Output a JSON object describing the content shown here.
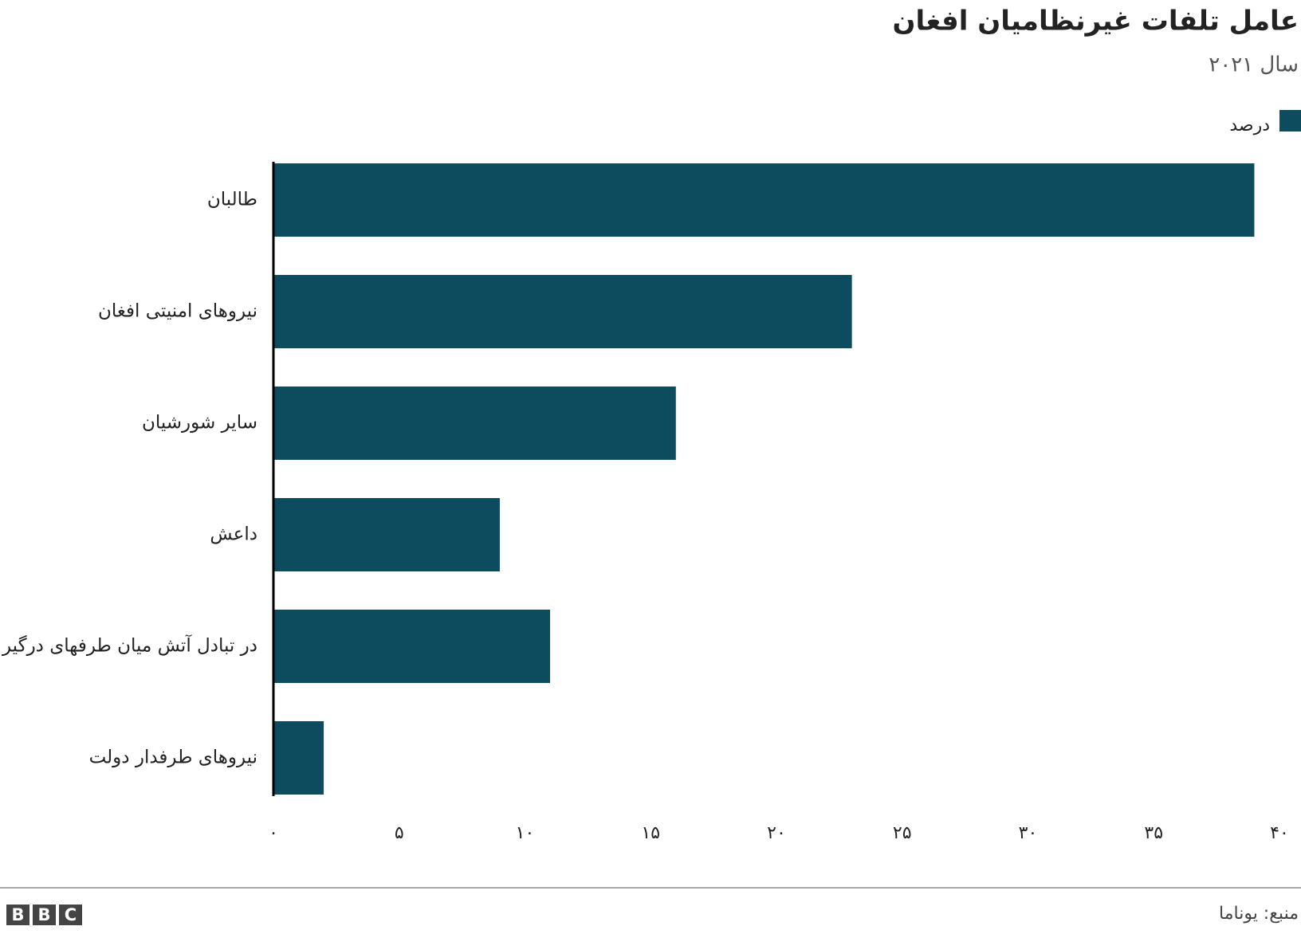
{
  "chart_data": {
    "type": "bar",
    "orientation": "horizontal",
    "title": "عامل تلفات غیرنظامیان افغان",
    "subtitle": "سال ۲۰۲۱",
    "categories": [
      "طالبان",
      "نیروهای امنیتی افغان",
      "سایر شورشیان",
      "داعش",
      "در تبادل آتش میان طرفهای درگیر",
      "نیروهای طرفدار دولت"
    ],
    "series": [
      {
        "name": "درصد",
        "color": "#0d4c5f",
        "values": [
          39,
          23,
          16,
          9,
          11,
          2
        ]
      }
    ],
    "xlim": [
      0,
      40
    ],
    "xticks": [
      {
        "value": 0,
        "label": "۰"
      },
      {
        "value": 5,
        "label": "۵"
      },
      {
        "value": 10,
        "label": "۱۰"
      },
      {
        "value": 15,
        "label": "۱۵"
      },
      {
        "value": 20,
        "label": "۲۰"
      },
      {
        "value": 25,
        "label": "۲۵"
      },
      {
        "value": 30,
        "label": "۳۰"
      },
      {
        "value": 35,
        "label": "۳۵"
      },
      {
        "value": 40,
        "label": "۴۰"
      }
    ],
    "grid": false
  },
  "footer": {
    "source": "منبع: یوناما",
    "logo_letters": [
      "B",
      "B",
      "C"
    ]
  }
}
